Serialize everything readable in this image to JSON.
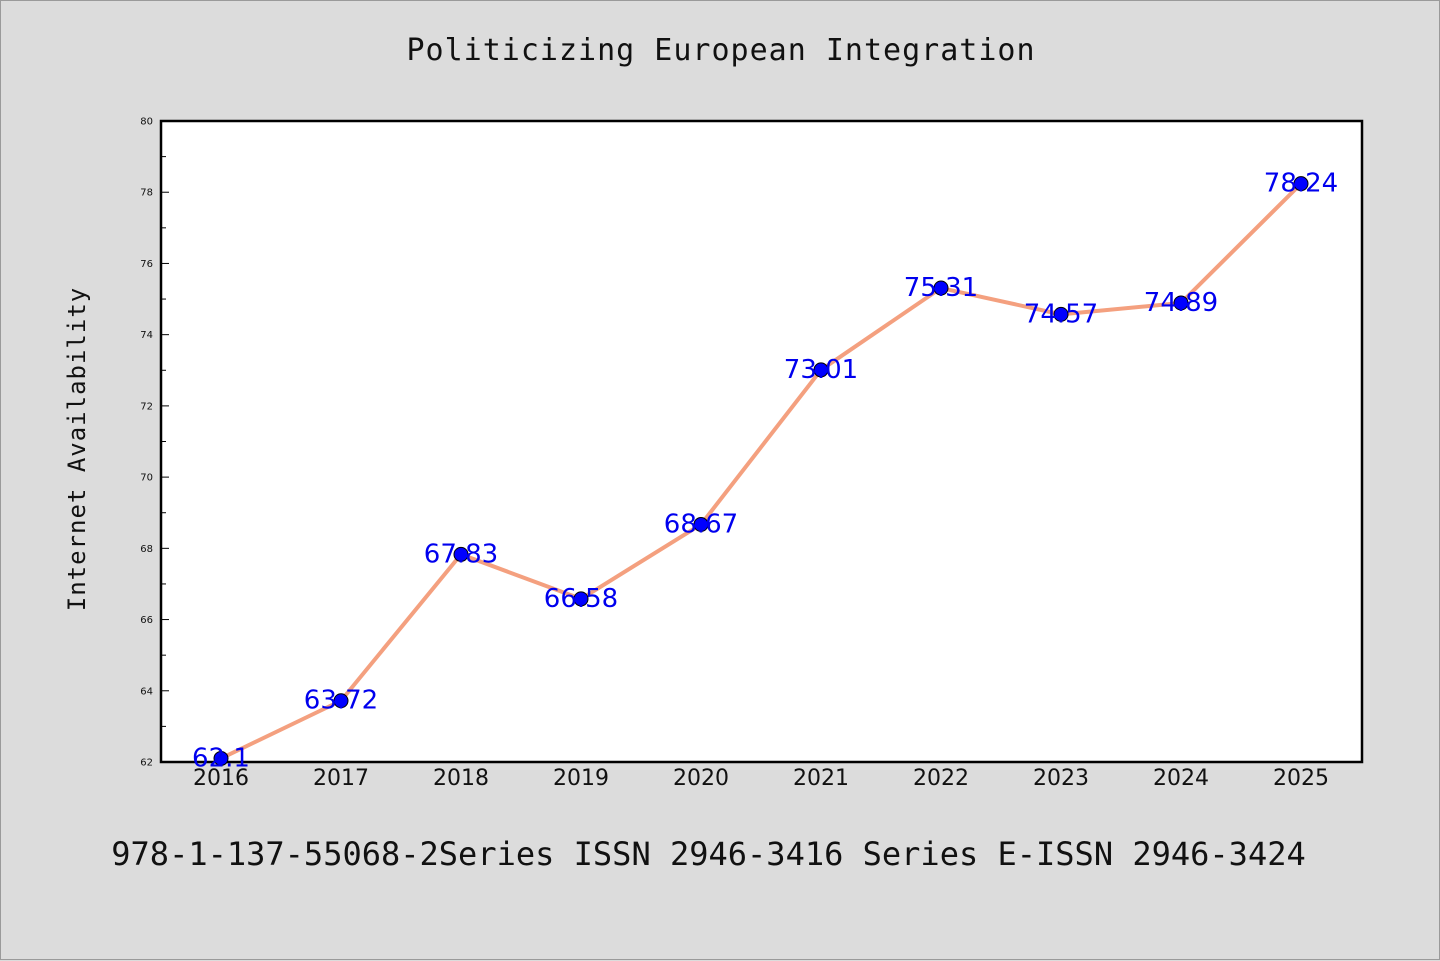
{
  "chart_data": {
    "type": "line",
    "title": "Politicizing European Integration",
    "xlabel": "",
    "ylabel": "Internet Availability",
    "categories": [
      "2016",
      "2017",
      "2018",
      "2019",
      "2020",
      "2021",
      "2022",
      "2023",
      "2024",
      "2025"
    ],
    "values": [
      62.1,
      63.72,
      67.83,
      66.58,
      68.67,
      73.01,
      75.31,
      74.57,
      74.89,
      78.24
    ],
    "data_labels": [
      "62.1",
      "63.72",
      "67.83",
      "66.58",
      "68.67",
      "73.01",
      "75.31",
      "74.57",
      "74.89",
      "78.24"
    ],
    "ylim": [
      62,
      80
    ],
    "yticks": [
      "62",
      "64",
      "66",
      "68",
      "70",
      "72",
      "74",
      "76",
      "78",
      "80"
    ],
    "grid": false,
    "legend": "none",
    "colors": {
      "line": "#f4a07f",
      "marker": "#0000ff",
      "label": "#0000ee",
      "background": "#dcdcdc",
      "plot_background": "#ffffff"
    }
  },
  "footer": "978-1-137-55068-2Series ISSN 2946-3416 Series E-ISSN 2946-3424"
}
